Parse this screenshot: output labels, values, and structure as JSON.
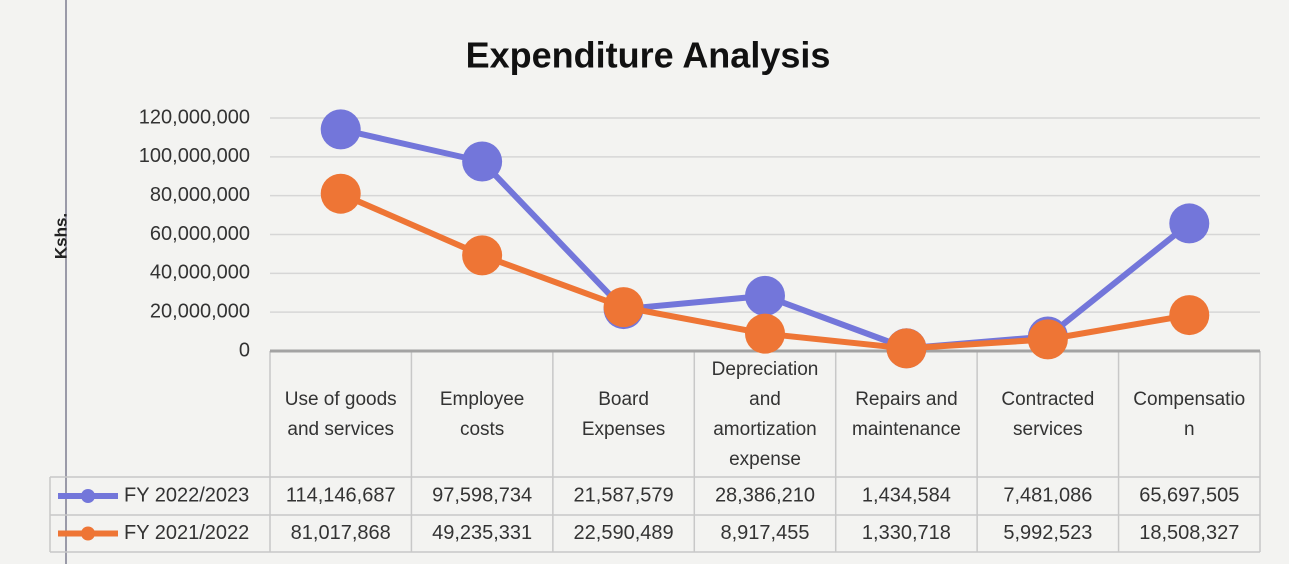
{
  "chart_data": {
    "type": "line",
    "title": "Expenditure Analysis",
    "y_label": "Kshs.",
    "categories": [
      "Use of goods and services",
      "Employee costs",
      "Board Expenses",
      "Depreciation and amortization expense",
      "Repairs and maintenance",
      "Contracted services",
      "Compensation"
    ],
    "series": [
      {
        "name": "FY 2022/2023",
        "color": "#7376da",
        "values": [
          114146687,
          97598734,
          21587579,
          28386210,
          1434584,
          7481086,
          65697505
        ],
        "value_labels": [
          "114,146,687",
          "97,598,734",
          "21,587,579",
          "28,386,210",
          "1,434,584",
          "7,481,086",
          "65,697,505"
        ]
      },
      {
        "name": "FY 2021/2022",
        "color": "#ee7535",
        "values": [
          81017868,
          49235331,
          22590489,
          8917455,
          1330718,
          5992523,
          18508327
        ],
        "value_labels": [
          "81,017,868",
          "49,235,331",
          "22,590,489",
          "8,917,455",
          "1,330,718",
          "5,992,523",
          "18,508,327"
        ]
      }
    ],
    "ylim": [
      0,
      120000000
    ],
    "yticks": [
      0,
      {
        "value": 20000000,
        "label": "20,000,000"
      },
      {
        "value": 40000000,
        "label": "40,000,000"
      },
      {
        "value": 60000000,
        "label": "60,000,000"
      },
      {
        "value": 80000000,
        "label": "80,000,000"
      },
      {
        "value": 100000000,
        "label": "100,000,000"
      },
      {
        "value": 120000000,
        "label": "120,000,000"
      }
    ],
    "grid": true,
    "data_table": true
  }
}
